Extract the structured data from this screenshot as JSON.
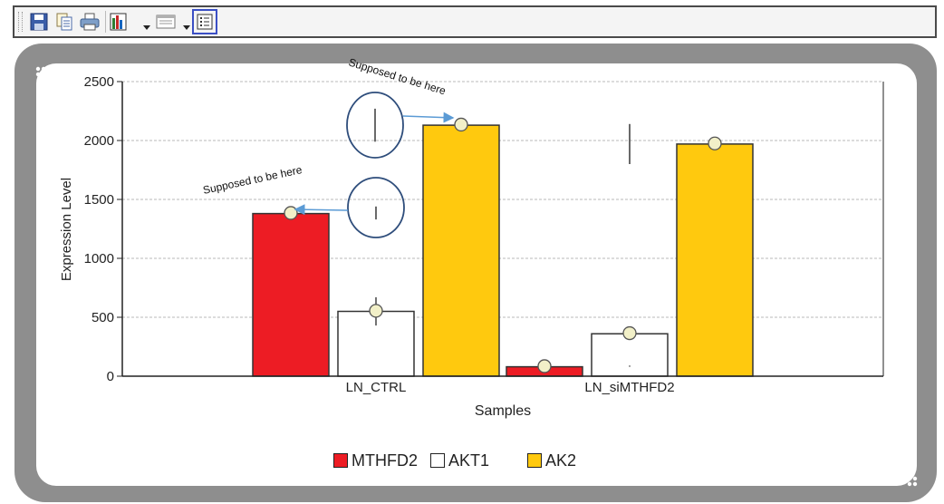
{
  "toolbar": {
    "icons": [
      "save-icon",
      "copy-icon",
      "print-icon",
      "chart-type-icon",
      "window-icon",
      "legend-icon"
    ]
  },
  "annotations": {
    "note_top": "Supposed to be here",
    "note_left": "Supposed to be here"
  },
  "colors": {
    "MTHFD2": "#ed1c24",
    "AKT1": "#ffffff",
    "AK2": "#ffc90e",
    "annotation": "#2e4d7b",
    "arrow": "#5b9bd5"
  },
  "chart_data": {
    "type": "bar",
    "xlabel": "Samples",
    "ylabel": "Expression Level",
    "ylim": [
      0,
      2500
    ],
    "yticks": [
      "0",
      "500",
      "1000",
      "1500",
      "2000",
      "2500"
    ],
    "grid": true,
    "categories": [
      "LN_CTRL",
      "LN_siMTHFD2"
    ],
    "series": [
      {
        "name": "MTHFD2",
        "color": "#ed1c24",
        "values": [
          1380,
          80
        ],
        "points": [
          1385,
          85
        ],
        "error_bars": [
          [
            1390,
            1385
          ],
          [
            70,
            90
          ]
        ]
      },
      {
        "name": "AKT1",
        "color": "#ffffff",
        "values": [
          550,
          360
        ],
        "points": [
          555,
          365
        ],
        "error_bars": [
          [
            430,
            670
          ],
          [
            80,
            90
          ]
        ]
      },
      {
        "name": "AK2",
        "color": "#ffc90e",
        "values": [
          2130,
          1970
        ],
        "points": [
          2135,
          1975
        ],
        "error_bars": [
          [
            2130,
            2135
          ],
          [
            1960,
            1985
          ]
        ]
      }
    ],
    "displaced_error_bars": [
      {
        "low": 1990,
        "high": 2270
      },
      {
        "low": 1330,
        "high": 1440
      },
      {
        "low": 1800,
        "high": 2140
      }
    ],
    "legend_position": "bottom"
  }
}
